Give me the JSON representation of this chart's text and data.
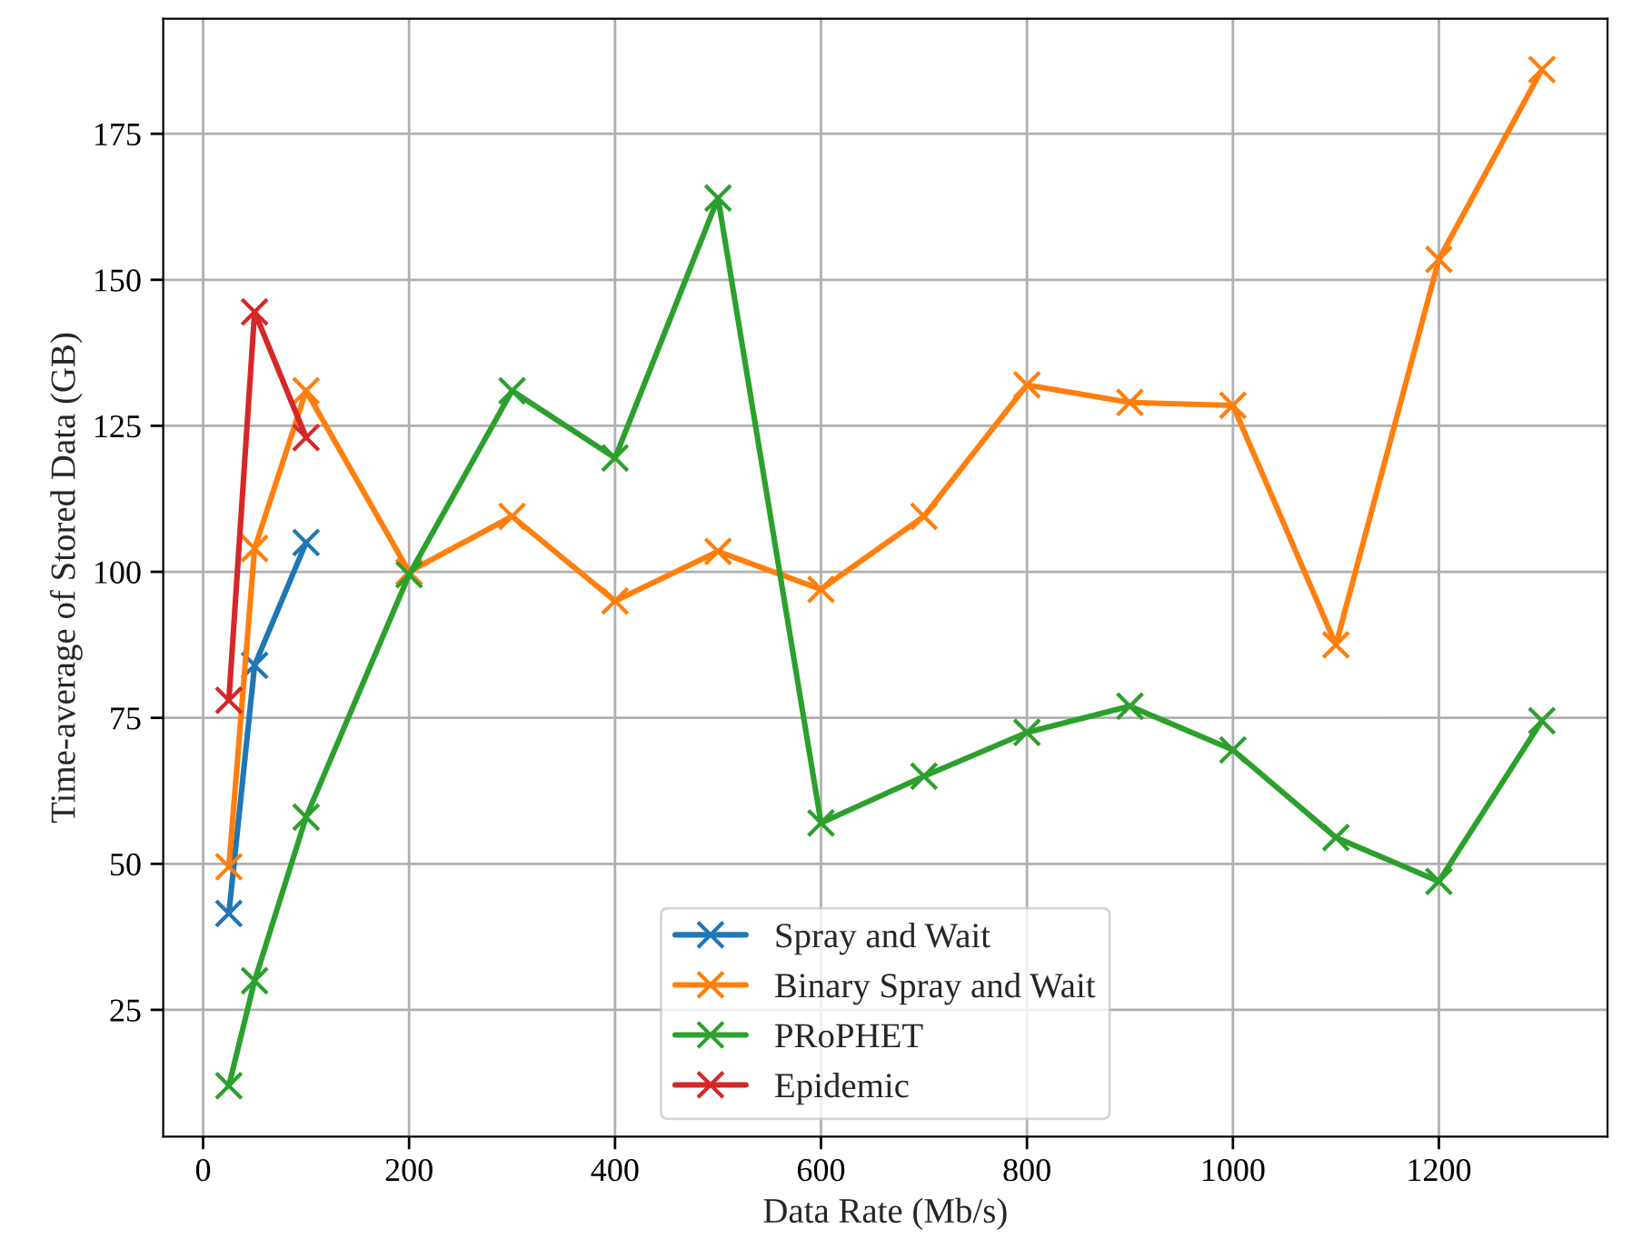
{
  "chart_data": {
    "type": "line",
    "xlabel": "Data Rate (Mb/s)",
    "ylabel": "Time-average of Stored Data (GB)",
    "xlim": [
      -38.75,
      1363.75
    ],
    "xticks": [
      0,
      200,
      400,
      600,
      800,
      1000,
      1200
    ],
    "ylim": [
      3.3,
      194.7
    ],
    "yticks": [
      25,
      50,
      75,
      100,
      125,
      150,
      175
    ],
    "grid": true,
    "legend": "bottom",
    "marker": "cross",
    "line_style": "solid",
    "series": [
      {
        "name": "Spray and Wait",
        "color": "#1f77b4",
        "x": [
          25,
          50,
          100
        ],
        "values": [
          41.5,
          84,
          105
        ]
      },
      {
        "name": "Binary Spray and Wait",
        "color": "#ff7f0e",
        "x": [
          25,
          50,
          100,
          200,
          300,
          400,
          500,
          600,
          700,
          800,
          900,
          1000,
          1100,
          1200,
          1300
        ],
        "values": [
          49.5,
          104,
          131,
          100,
          109.5,
          95,
          103.5,
          97,
          109.5,
          132,
          129,
          128.5,
          87.5,
          153.5,
          186
        ]
      },
      {
        "name": "PRoPHET",
        "color": "#2ca02c",
        "x": [
          25,
          50,
          100,
          200,
          300,
          400,
          500,
          600,
          700,
          800,
          900,
          1000,
          1100,
          1200,
          1300
        ],
        "values": [
          12,
          30,
          58,
          99.5,
          131,
          119.5,
          164,
          57,
          65,
          72.5,
          77,
          69.5,
          54.5,
          47,
          74.5
        ]
      },
      {
        "name": "Epidemic",
        "color": "#d62728",
        "x": [
          25,
          50,
          100
        ],
        "values": [
          78,
          144.5,
          123
        ]
      }
    ]
  }
}
